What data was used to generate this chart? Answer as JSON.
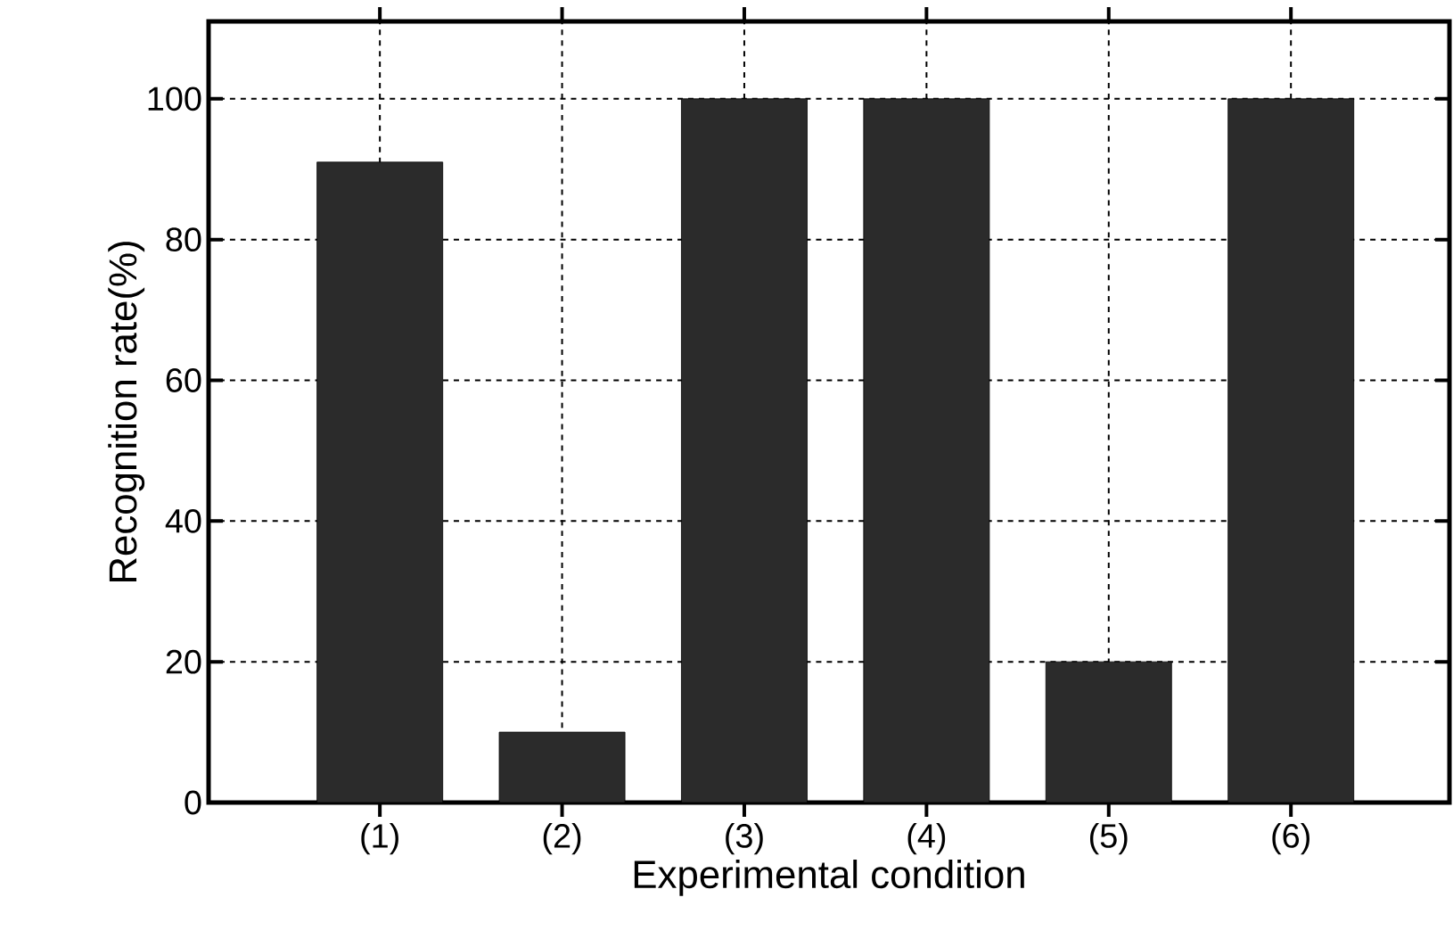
{
  "chart_data": {
    "type": "bar",
    "xlabel": "Experimental condition",
    "ylabel": "Recognition rate(%)",
    "categories": [
      "(1)",
      "(2)",
      "(3)",
      "(4)",
      "(5)",
      "(6)"
    ],
    "values": [
      91,
      10,
      100,
      100,
      20,
      100
    ],
    "color": "#2b2b2b",
    "ylim": [
      0,
      111
    ],
    "yticks": [
      0,
      20,
      40,
      60,
      80,
      100
    ],
    "grid": true
  }
}
